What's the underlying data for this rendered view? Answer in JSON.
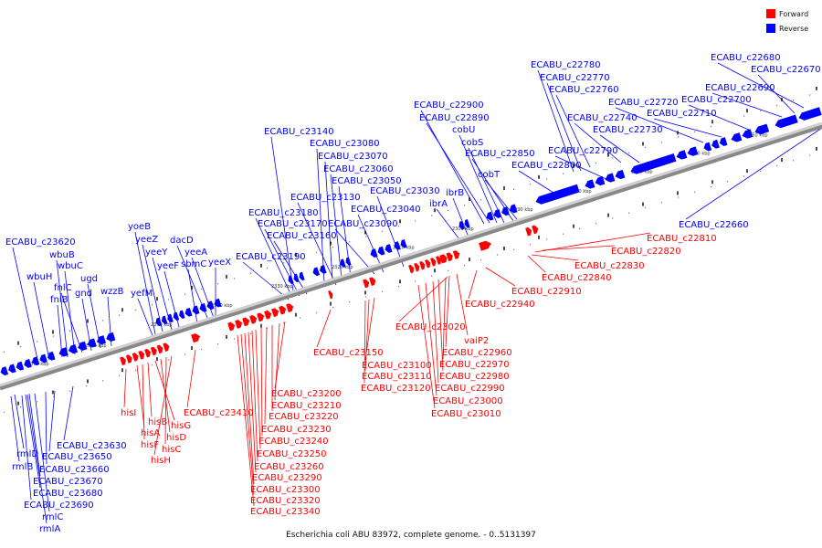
{
  "legend": {
    "forward": {
      "label": "Forward",
      "color": "#ff0000"
    },
    "reverse": {
      "label": "Reverse",
      "color": "#0000ff"
    }
  },
  "caption": "Escherichia coli ABU 83972, complete genome. - 0..5131397",
  "axis": {
    "kbp_labels": [
      "2250 kbp",
      "2260 kbp",
      "2270 kbp",
      "2280 kbp",
      "2290 kbp",
      "2300 kbp",
      "2310 kbp",
      "2320 kbp",
      "2330 kbp",
      "2340 kbp",
      "2350 kbp",
      "2360 kbp",
      "2370 kbp"
    ]
  },
  "reverse_labels": [
    "ECABU_c22680",
    "ECABU_c22670",
    "ECABU_c22690",
    "ECABU_c22700",
    "ECABU_c22710",
    "ECABU_c22720",
    "ECABU_c22780",
    "ECABU_c22770",
    "ECABU_c22760",
    "ECABU_c22740",
    "ECABU_c22730",
    "ECABU_c22790",
    "ECABU_c22800",
    "ECABU_c22900",
    "ECABU_c22890",
    "cobU",
    "cobS",
    "ECABU_c22850",
    "cobT",
    "ibrB",
    "ibrA",
    "ECABU_c23140",
    "ECABU_c23080",
    "ECABU_c23070",
    "ECABU_c23060",
    "ECABU_c23050",
    "ECABU_c23030",
    "ECABU_c23130",
    "ECABU_c23040",
    "ECABU_c23180",
    "ECABU_c23170",
    "ECABU_c23090",
    "ECABU_c23160",
    "ECABU_c23190",
    "yoeB",
    "yeeZ",
    "dacD",
    "yeeY",
    "yeeA",
    "yeeF",
    "sbmC",
    "yeeX",
    "yefM",
    "ECABU_c23620",
    "wbuB",
    "wbuC",
    "wbuH",
    "fnlC",
    "ugd",
    "fnlB",
    "gnd",
    "wzzB",
    "ECABU_c22660",
    "ECABU_c23630",
    "rmlD",
    "ECABU_c23650",
    "rmlB",
    "ECABU_c23660",
    "ECABU_c23670",
    "ECABU_c23680",
    "ECABU_c23690",
    "rmlC",
    "rmlA"
  ],
  "forward_labels": [
    "ECABU_c22810",
    "ECABU_c22820",
    "ECABU_c22830",
    "ECABU_c22840",
    "ECABU_c22910",
    "ECABU_c22940",
    "ECABU_c23020",
    "vaiP2",
    "ECABU_c22960",
    "ECABU_c22970",
    "ECABU_c22980",
    "ECABU_c22990",
    "ECABU_c23000",
    "ECABU_c23010",
    "ECABU_c23150",
    "ECABU_c23100",
    "ECABU_c23110",
    "ECABU_c23120",
    "ECABU_c23200",
    "ECABU_c23210",
    "ECABU_c23220",
    "ECABU_c23230",
    "ECABU_c23240",
    "ECABU_c23250",
    "ECABU_c23260",
    "ECABU_c23290",
    "ECABU_c23300",
    "ECABU_c23320",
    "ECABU_c23340",
    "ECABU_c23410",
    "hisI",
    "hisB",
    "hisG",
    "hisA",
    "hisD",
    "hisF",
    "hisC",
    "hisH"
  ]
}
